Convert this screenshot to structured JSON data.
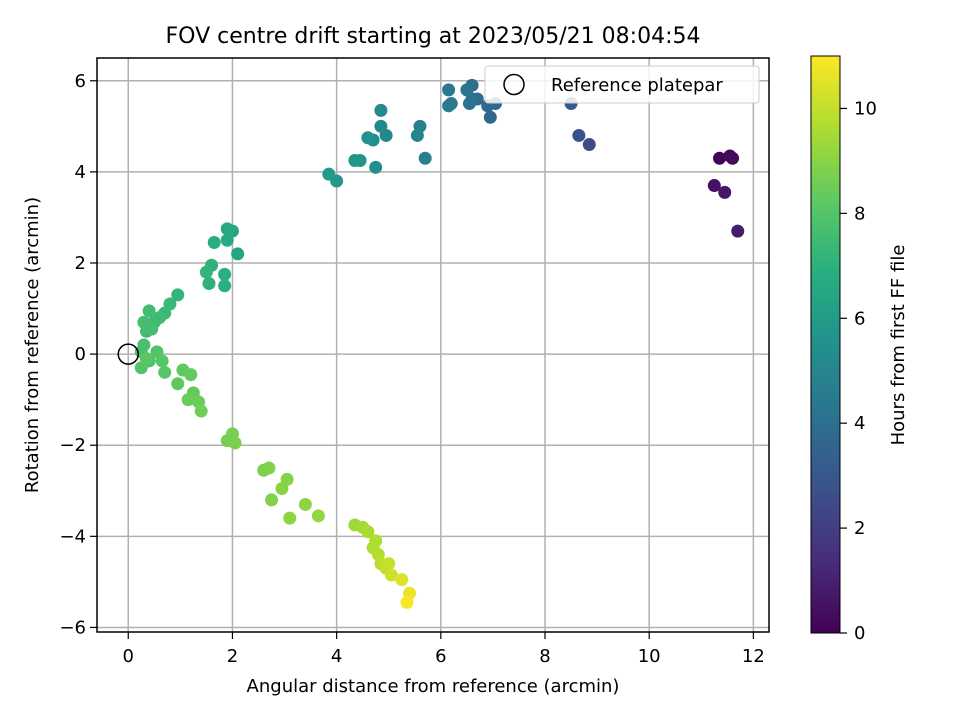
{
  "chart_data": {
    "type": "scatter",
    "title": "FOV centre drift starting at 2023/05/21 08:04:54",
    "xlabel": "Angular distance from reference (arcmin)",
    "ylabel": "Rotation from reference (arcmin)",
    "xlim": [
      -0.6,
      12.3
    ],
    "ylim": [
      -6.1,
      6.5
    ],
    "xticks": [
      0,
      2,
      4,
      6,
      8,
      10,
      12
    ],
    "yticks": [
      -6,
      -4,
      -2,
      0,
      2,
      4,
      6
    ],
    "xtick_labels": [
      "0",
      "2",
      "4",
      "6",
      "8",
      "10",
      "12"
    ],
    "ytick_labels": [
      "−6",
      "−4",
      "−2",
      "0",
      "2",
      "4",
      "6"
    ],
    "grid": true,
    "legend_position": "top-right",
    "colormap": "viridis",
    "colorbar": {
      "label": "Hours from first FF file",
      "range": [
        0,
        11
      ],
      "ticks": [
        0,
        2,
        4,
        6,
        8,
        10
      ],
      "tick_labels": [
        "0",
        "2",
        "4",
        "6",
        "8",
        "10"
      ]
    },
    "reference_point": {
      "name": "Reference platepar",
      "x": 0,
      "y": 0
    },
    "series": [
      {
        "points": [
          [
            11.35,
            4.3,
            0.1
          ],
          [
            11.55,
            4.35,
            0.2
          ],
          [
            11.6,
            4.3,
            0.3
          ],
          [
            11.25,
            3.7,
            0.5
          ],
          [
            11.45,
            3.55,
            0.7
          ],
          [
            11.7,
            2.7,
            0.9
          ],
          [
            8.85,
            4.6,
            2.6
          ],
          [
            8.65,
            4.8,
            2.8
          ],
          [
            8.5,
            5.5,
            3.1
          ],
          [
            7.05,
            5.5,
            3.6
          ],
          [
            6.95,
            5.2,
            3.7
          ],
          [
            6.9,
            5.45,
            3.8
          ],
          [
            6.7,
            5.6,
            3.9
          ],
          [
            6.6,
            5.9,
            4.0
          ],
          [
            6.6,
            5.6,
            4.1
          ],
          [
            6.55,
            5.5,
            4.2
          ],
          [
            6.5,
            5.8,
            4.3
          ],
          [
            6.2,
            5.5,
            4.4
          ],
          [
            6.15,
            5.8,
            4.5
          ],
          [
            6.15,
            5.45,
            4.6
          ],
          [
            5.7,
            4.3,
            4.8
          ],
          [
            5.6,
            5.0,
            4.9
          ],
          [
            5.55,
            4.8,
            5.0
          ],
          [
            4.95,
            4.8,
            5.1
          ],
          [
            4.85,
            5.0,
            5.2
          ],
          [
            4.85,
            5.35,
            5.3
          ],
          [
            4.75,
            4.1,
            5.4
          ],
          [
            4.7,
            4.7,
            5.5
          ],
          [
            4.6,
            4.75,
            5.6
          ],
          [
            4.45,
            4.25,
            5.7
          ],
          [
            4.35,
            4.25,
            5.8
          ],
          [
            4.0,
            3.8,
            5.9
          ],
          [
            3.85,
            3.95,
            6.0
          ],
          [
            2.1,
            2.2,
            6.5
          ],
          [
            2.0,
            2.7,
            6.6
          ],
          [
            1.9,
            2.75,
            6.7
          ],
          [
            1.9,
            2.5,
            6.8
          ],
          [
            1.65,
            2.45,
            6.9
          ],
          [
            1.85,
            1.75,
            7.0
          ],
          [
            1.85,
            1.5,
            7.0
          ],
          [
            1.6,
            1.95,
            7.1
          ],
          [
            1.55,
            1.55,
            7.1
          ],
          [
            1.5,
            1.8,
            7.2
          ],
          [
            0.95,
            1.3,
            7.3
          ],
          [
            0.8,
            1.1,
            7.4
          ],
          [
            0.7,
            0.9,
            7.4
          ],
          [
            0.6,
            0.8,
            7.5
          ],
          [
            0.5,
            0.7,
            7.5
          ],
          [
            0.4,
            0.95,
            7.6
          ],
          [
            0.35,
            0.5,
            7.6
          ],
          [
            0.3,
            0.7,
            7.7
          ],
          [
            0.45,
            0.55,
            7.7
          ],
          [
            0.3,
            0.2,
            7.8
          ],
          [
            0.25,
            0.05,
            7.8
          ],
          [
            0.4,
            -0.15,
            7.9
          ],
          [
            0.25,
            -0.3,
            8.0
          ],
          [
            0.55,
            0.05,
            8.0
          ],
          [
            0.65,
            -0.15,
            8.1
          ],
          [
            0.7,
            -0.4,
            8.1
          ],
          [
            0.35,
            -0.1,
            8.2
          ],
          [
            0.95,
            -0.65,
            8.3
          ],
          [
            1.05,
            -0.35,
            8.3
          ],
          [
            1.2,
            -0.45,
            8.4
          ],
          [
            1.25,
            -0.85,
            8.4
          ],
          [
            1.15,
            -1.0,
            8.5
          ],
          [
            1.35,
            -1.05,
            8.5
          ],
          [
            1.4,
            -1.25,
            8.6
          ],
          [
            1.9,
            -1.9,
            8.7
          ],
          [
            2.0,
            -1.75,
            8.7
          ],
          [
            2.05,
            -1.95,
            8.8
          ],
          [
            2.6,
            -2.55,
            8.8
          ],
          [
            2.7,
            -2.5,
            8.9
          ],
          [
            2.75,
            -3.2,
            8.9
          ],
          [
            2.95,
            -2.95,
            9.0
          ],
          [
            3.05,
            -2.75,
            9.0
          ],
          [
            3.1,
            -3.6,
            9.1
          ],
          [
            3.4,
            -3.3,
            9.1
          ],
          [
            3.65,
            -3.55,
            9.2
          ],
          [
            4.35,
            -3.75,
            9.4
          ],
          [
            4.5,
            -3.8,
            9.5
          ],
          [
            4.6,
            -3.9,
            9.6
          ],
          [
            4.7,
            -4.25,
            9.7
          ],
          [
            4.75,
            -4.1,
            9.7
          ],
          [
            4.8,
            -4.4,
            9.8
          ],
          [
            4.85,
            -4.6,
            9.9
          ],
          [
            4.95,
            -4.7,
            10.0
          ],
          [
            5.0,
            -4.6,
            10.1
          ],
          [
            5.05,
            -4.85,
            10.2
          ],
          [
            5.25,
            -4.95,
            10.5
          ],
          [
            5.4,
            -5.25,
            10.7
          ],
          [
            5.35,
            -5.45,
            10.9
          ]
        ]
      }
    ]
  }
}
